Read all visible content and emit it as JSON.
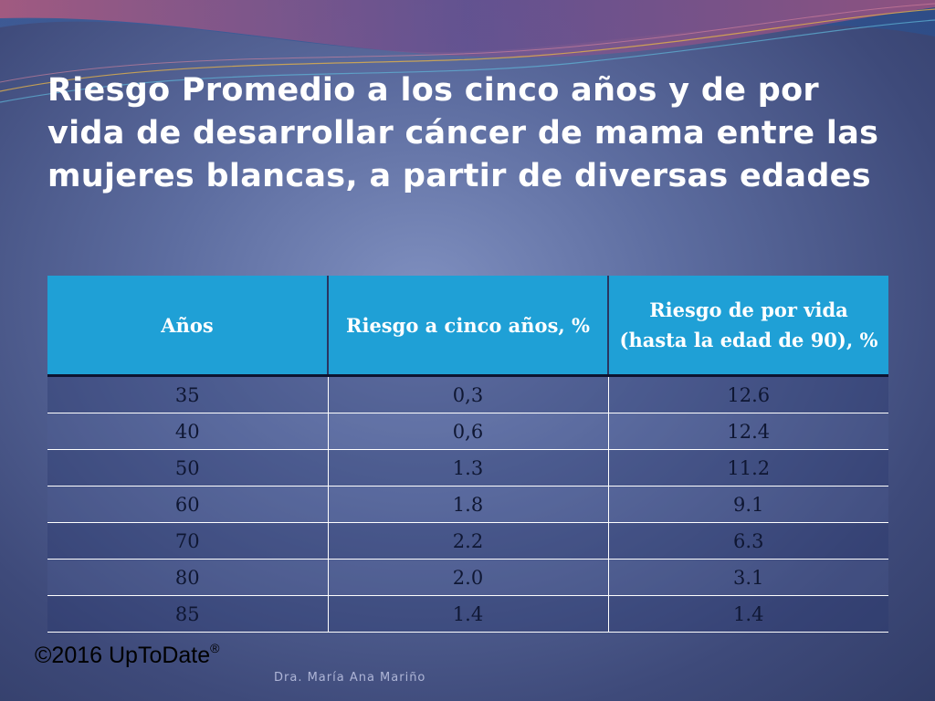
{
  "slide": {
    "title": "Riesgo Promedio a los cinco años y de por vida de desarrollar cáncer de mama entre las mujeres blancas, a partir de diversas edades"
  },
  "table": {
    "headers": [
      "Años",
      "Riesgo a cinco años, %",
      "Riesgo de por  vida (hasta la edad de 90), %"
    ],
    "rows": [
      [
        "35",
        "0,3",
        "12.6"
      ],
      [
        "40",
        "0,6",
        "12.4"
      ],
      [
        "50",
        "1.3",
        "11.2"
      ],
      [
        "60",
        "1.8",
        "9.1"
      ],
      [
        "70",
        "2.2",
        "6.3"
      ],
      [
        "80",
        "2.0",
        "3.1"
      ],
      [
        "85",
        "1.4",
        "1.4"
      ]
    ]
  },
  "footer": {
    "copyright": "©2016 UpToDate",
    "registered_mark": "®",
    "author": "Dra. María Ana Mariño"
  },
  "colors": {
    "header_bg": "#1fa0d6",
    "background": "#5d6da0"
  }
}
